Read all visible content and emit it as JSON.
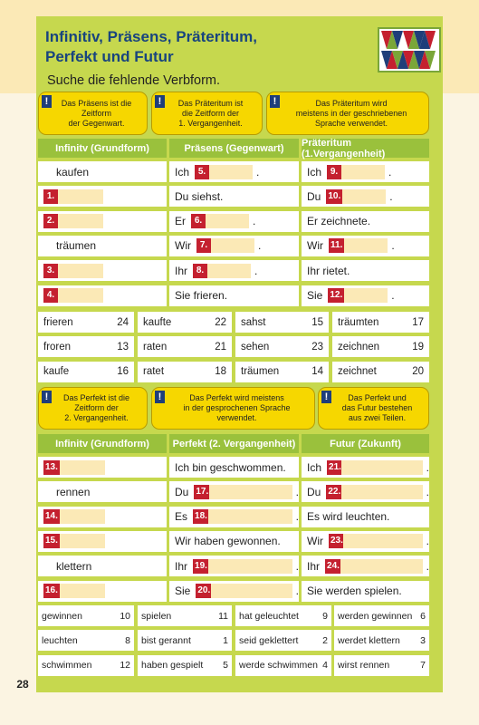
{
  "page": {
    "title_line1": "Infinitiv, Präsens, Präteritum,",
    "title_line2": "Perfekt und Futur",
    "instruction": "Suche die fehlende Verbform.",
    "number": "28"
  },
  "colors": {
    "panel": "#c6d84e",
    "header": "#9ac13c",
    "note": "#f6d700",
    "number": "#c4202f",
    "blank": "#fbe9b6",
    "title": "#18447e"
  },
  "logo": {
    "icon": "triangle-pattern-logo"
  },
  "notes1": [
    {
      "mark": "!",
      "lines": [
        "Das Präsens ist die",
        "Zeitform",
        "der Gegenwart."
      ]
    },
    {
      "mark": "!",
      "lines": [
        "Das Präteritum ist",
        "die Zeitform der",
        "1. Vergangenheit."
      ]
    },
    {
      "mark": "!",
      "lines": [
        "Das Präteritum wird",
        "meistens in der geschriebenen",
        "Sprache verwendet."
      ]
    }
  ],
  "table1": {
    "headers": [
      "Infinitv (Grundform)",
      "Präsens (Gegenwart)",
      "Präteritum (1.Vergangenheit)"
    ],
    "rows": [
      [
        {
          "text": "kaufen"
        },
        {
          "pre": "Ich",
          "num": "5.",
          "post": "."
        },
        {
          "pre": "Ich",
          "num": "9.",
          "post": "."
        }
      ],
      [
        {
          "num": "1."
        },
        {
          "text": "Du siehst."
        },
        {
          "pre": "Du",
          "num": "10.",
          "post": "."
        }
      ],
      [
        {
          "num": "2."
        },
        {
          "pre": "Er",
          "num": "6.",
          "post": "."
        },
        {
          "text": "Er zeichnete."
        }
      ],
      [
        {
          "text": "träumen"
        },
        {
          "pre": "Wir",
          "num": "7.",
          "post": "."
        },
        {
          "pre": "Wir",
          "num": "11.",
          "post": "."
        }
      ],
      [
        {
          "num": "3."
        },
        {
          "pre": "Ihr",
          "num": "8.",
          "post": "."
        },
        {
          "text": "Ihr rietet."
        }
      ],
      [
        {
          "num": "4."
        },
        {
          "text": "Sie frieren."
        },
        {
          "pre": "Sie",
          "num": "12.",
          "post": "."
        }
      ]
    ]
  },
  "options1": [
    [
      {
        "word": "frieren",
        "n": "24"
      },
      {
        "word": "kaufte",
        "n": "22"
      },
      {
        "word": "sahst",
        "n": "15"
      },
      {
        "word": "träumten",
        "n": "17"
      }
    ],
    [
      {
        "word": "froren",
        "n": "13"
      },
      {
        "word": "raten",
        "n": "21"
      },
      {
        "word": "sehen",
        "n": "23"
      },
      {
        "word": "zeichnen",
        "n": "19"
      }
    ],
    [
      {
        "word": "kaufe",
        "n": "16"
      },
      {
        "word": "ratet",
        "n": "18"
      },
      {
        "word": "träumen",
        "n": "14"
      },
      {
        "word": "zeichnet",
        "n": "20"
      }
    ]
  ],
  "notes2": [
    {
      "mark": "!",
      "lines": [
        "Das Perfekt ist die",
        "Zeitform der",
        "2. Vergangenheit."
      ]
    },
    {
      "mark": "!",
      "lines": [
        "Das Perfekt wird meistens",
        "in der gesprochenen Sprache",
        "verwendet."
      ]
    },
    {
      "mark": "!",
      "lines": [
        "Das Perfekt und",
        "das Futur bestehen",
        "aus zwei Teilen."
      ]
    }
  ],
  "table2": {
    "headers": [
      "Infinitv (Grundform)",
      "Perfekt (2. Vergangenheit)",
      "Futur (Zukunft)"
    ],
    "rows": [
      [
        {
          "num": "13."
        },
        {
          "text": "Ich bin geschwommen."
        },
        {
          "pre": "Ich",
          "num": "21.",
          "post": "."
        }
      ],
      [
        {
          "text": "rennen"
        },
        {
          "pre": "Du",
          "num": "17.",
          "post": "."
        },
        {
          "pre": "Du",
          "num": "22.",
          "post": "."
        }
      ],
      [
        {
          "num": "14."
        },
        {
          "pre": "Es",
          "num": "18.",
          "post": "."
        },
        {
          "text": "Es wird leuchten."
        }
      ],
      [
        {
          "num": "15."
        },
        {
          "text": "Wir haben gewonnen."
        },
        {
          "pre": "Wir",
          "num": "23.",
          "post": "."
        }
      ],
      [
        {
          "text": "klettern"
        },
        {
          "pre": "Ihr",
          "num": "19.",
          "post": "."
        },
        {
          "pre": "Ihr",
          "num": "24.",
          "post": "."
        }
      ],
      [
        {
          "num": "16."
        },
        {
          "pre": "Sie",
          "num": "20.",
          "post": "."
        },
        {
          "text": "Sie werden spielen."
        }
      ]
    ]
  },
  "options2": [
    [
      {
        "word": "gewinnen",
        "n": "10"
      },
      {
        "word": "spielen",
        "n": "11"
      },
      {
        "word": "hat geleuchtet",
        "n": "9"
      },
      {
        "word": "werden gewinnen",
        "n": "6"
      }
    ],
    [
      {
        "word": "leuchten",
        "n": "8"
      },
      {
        "word": "bist gerannt",
        "n": "1"
      },
      {
        "word": "seid geklettert",
        "n": "2"
      },
      {
        "word": "werdet klettern",
        "n": "3"
      }
    ],
    [
      {
        "word": "schwimmen",
        "n": "12"
      },
      {
        "word": "haben gespielt",
        "n": "5"
      },
      {
        "word": "werde schwimmen",
        "n": "4"
      },
      {
        "word": "wirst rennen",
        "n": "7"
      }
    ]
  ]
}
